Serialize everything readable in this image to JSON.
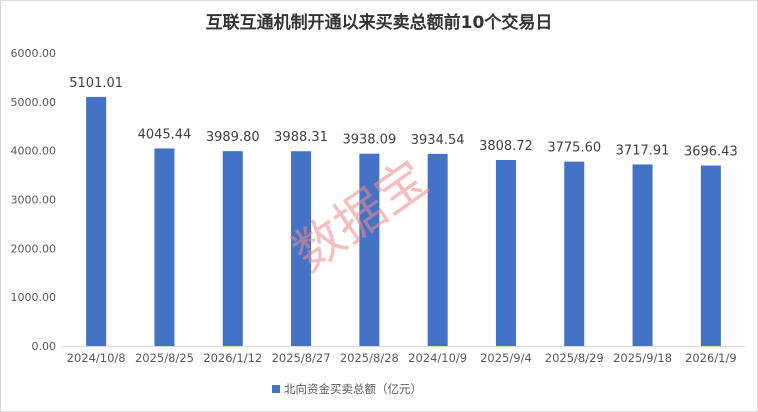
{
  "chart_data": {
    "type": "bar",
    "title": "互联互通机制开通以来买卖总额前10个交易日",
    "categories": [
      "2024/10/8",
      "2025/8/25",
      "2026/1/12",
      "2025/8/27",
      "2025/8/28",
      "2024/10/9",
      "2025/9/4",
      "2025/8/29",
      "2025/9/18",
      "2026/1/9"
    ],
    "series": [
      {
        "name": "北向资金买卖总额（亿元）",
        "values": [
          5101.01,
          4045.44,
          3989.8,
          3988.31,
          3938.09,
          3934.54,
          3808.72,
          3775.6,
          3717.91,
          3696.43
        ],
        "color": "#4472c4"
      }
    ],
    "value_labels": [
      "5101.01",
      "4045.44",
      "3989.80",
      "3988.31",
      "3938.09",
      "3934.54",
      "3808.72",
      "3775.60",
      "3717.91",
      "3696.43"
    ],
    "yticks": [
      "0.00",
      "1000.00",
      "2000.00",
      "3000.00",
      "4000.00",
      "5000.00",
      "6000.00"
    ],
    "ylim": [
      0,
      6000
    ],
    "xlabel": "",
    "ylabel": "",
    "grid": false,
    "legend_position": "bottom"
  },
  "watermark": "数据宝"
}
